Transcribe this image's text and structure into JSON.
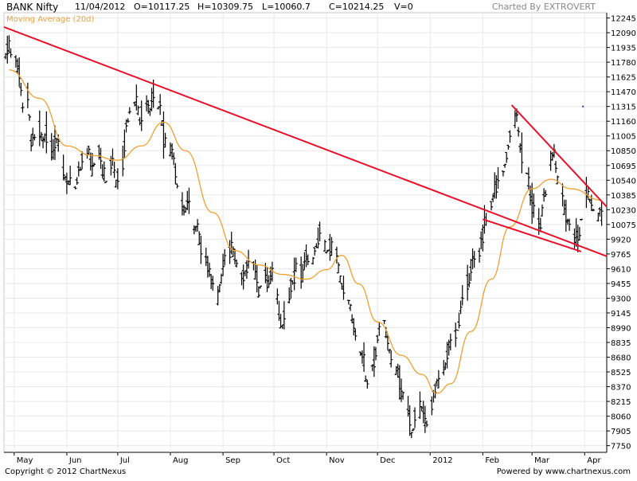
{
  "header": {
    "symbol": "BANK Nifty",
    "date": "11/04/2012",
    "open": "O=10117.25",
    "high": "H=10309.75",
    "low": "L=10060.7",
    "close": "C=10214.25",
    "volume": "V=0",
    "charted_by": "Charted By EXTROVERT"
  },
  "footer": {
    "copyright": "Copyright © 2012 ChartNexus",
    "powered": "Powered by www.chartnexus.com"
  },
  "colors": {
    "price_bar": "#000000",
    "moving_average": "#f0a030",
    "trendline": "#e8102a",
    "grid": "#e8e8e8",
    "axis": "#000000"
  },
  "chart_data": {
    "type": "ohlc",
    "title": "BANK Nifty",
    "series_name": "BANK Nifty",
    "moving_average_label": "Moving Average (20d)",
    "y_range": [
      7680,
      12300
    ],
    "y_ticks": [
      12245,
      12090,
      11935,
      11780,
      11625,
      11470,
      11315,
      11160,
      11005,
      10850,
      10695,
      10540,
      10385,
      10230,
      10075,
      9920,
      9765,
      9610,
      9455,
      9300,
      9145,
      8990,
      8835,
      8680,
      8525,
      8370,
      8215,
      8060,
      7905,
      7750
    ],
    "x_range": [
      "2011-04-25",
      "2012-04-14"
    ],
    "x_tick_labels": [
      {
        "label": "May",
        "date": "2011-05-01"
      },
      {
        "label": "Jun",
        "date": "2011-06-01"
      },
      {
        "label": "Jul",
        "date": "2011-07-01"
      },
      {
        "label": "Aug",
        "date": "2011-08-01"
      },
      {
        "label": "Sep",
        "date": "2011-09-01"
      },
      {
        "label": "Oct",
        "date": "2011-10-01"
      },
      {
        "label": "Nov",
        "date": "2011-11-01"
      },
      {
        "label": "Dec",
        "date": "2011-12-01"
      },
      {
        "label": "2012",
        "date": "2012-01-01"
      },
      {
        "label": "Feb",
        "date": "2012-02-01"
      },
      {
        "label": "Mar",
        "date": "2012-03-01"
      },
      {
        "label": "Apr",
        "date": "2012-04-01"
      }
    ],
    "price_path": [
      [
        "2011-04-26",
        11850
      ],
      [
        "2011-04-28",
        11950
      ],
      [
        "2011-05-04",
        11700
      ],
      [
        "2011-05-06",
        11300
      ],
      [
        "2011-05-09",
        11450
      ],
      [
        "2011-05-11",
        10950
      ],
      [
        "2011-05-16",
        11100
      ],
      [
        "2011-05-18",
        10900
      ],
      [
        "2011-05-20",
        11050
      ],
      [
        "2011-05-24",
        10850
      ],
      [
        "2011-05-26",
        10950
      ],
      [
        "2011-05-30",
        10700
      ],
      [
        "2011-06-01",
        10450
      ],
      [
        "2011-06-03",
        10600
      ],
      [
        "2011-06-06",
        10500
      ],
      [
        "2011-06-08",
        10650
      ],
      [
        "2011-06-10",
        10750
      ],
      [
        "2011-06-14",
        10850
      ],
      [
        "2011-06-16",
        10700
      ],
      [
        "2011-06-20",
        10850
      ],
      [
        "2011-06-22",
        10650
      ],
      [
        "2011-06-24",
        10550
      ],
      [
        "2011-06-28",
        10750
      ],
      [
        "2011-06-30",
        10500
      ],
      [
        "2011-07-04",
        10750
      ],
      [
        "2011-07-06",
        11100
      ],
      [
        "2011-07-08",
        11300
      ],
      [
        "2011-07-12",
        11350
      ],
      [
        "2011-07-14",
        11200
      ],
      [
        "2011-07-18",
        11300
      ],
      [
        "2011-07-20",
        11250
      ],
      [
        "2011-07-22",
        11400
      ],
      [
        "2011-07-26",
        11300
      ],
      [
        "2011-07-28",
        11000
      ],
      [
        "2011-08-01",
        10850
      ],
      [
        "2011-08-03",
        10750
      ],
      [
        "2011-08-05",
        10500
      ],
      [
        "2011-08-09",
        10200
      ],
      [
        "2011-08-11",
        10300
      ],
      [
        "2011-08-15",
        10000
      ],
      [
        "2011-08-17",
        10050
      ],
      [
        "2011-08-19",
        9800
      ],
      [
        "2011-08-23",
        9650
      ],
      [
        "2011-08-25",
        9500
      ],
      [
        "2011-08-29",
        9300
      ],
      [
        "2011-08-31",
        9500
      ],
      [
        "2011-09-02",
        9700
      ],
      [
        "2011-09-06",
        9850
      ],
      [
        "2011-09-08",
        9750
      ],
      [
        "2011-09-12",
        9500
      ],
      [
        "2011-09-14",
        9550
      ],
      [
        "2011-09-16",
        9700
      ],
      [
        "2011-09-20",
        9600
      ],
      [
        "2011-09-22",
        9400
      ],
      [
        "2011-09-26",
        9550
      ],
      [
        "2011-09-28",
        9500
      ],
      [
        "2011-09-30",
        9550
      ],
      [
        "2011-10-04",
        9200
      ],
      [
        "2011-10-06",
        9000
      ],
      [
        "2011-10-10",
        9350
      ],
      [
        "2011-10-12",
        9500
      ],
      [
        "2011-10-14",
        9650
      ],
      [
        "2011-10-18",
        9550
      ],
      [
        "2011-10-20",
        9750
      ],
      [
        "2011-10-24",
        9700
      ],
      [
        "2011-10-26",
        9900
      ],
      [
        "2011-10-28",
        10000
      ],
      [
        "2011-11-01",
        9800
      ],
      [
        "2011-11-03",
        9850
      ],
      [
        "2011-11-07",
        9750
      ],
      [
        "2011-11-09",
        9500
      ],
      [
        "2011-11-11",
        9400
      ],
      [
        "2011-11-15",
        9200
      ],
      [
        "2011-11-17",
        9000
      ],
      [
        "2011-11-21",
        8750
      ],
      [
        "2011-11-23",
        8600
      ],
      [
        "2011-11-25",
        8400
      ],
      [
        "2011-11-29",
        8600
      ],
      [
        "2011-12-01",
        8900
      ],
      [
        "2011-12-05",
        9050
      ],
      [
        "2011-12-07",
        8850
      ],
      [
        "2011-12-09",
        8650
      ],
      [
        "2011-12-13",
        8500
      ],
      [
        "2011-12-15",
        8300
      ],
      [
        "2011-12-19",
        8150
      ],
      [
        "2011-12-21",
        7850
      ],
      [
        "2011-12-23",
        8050
      ],
      [
        "2011-12-27",
        8150
      ],
      [
        "2011-12-29",
        7950
      ],
      [
        "2012-01-02",
        8200
      ],
      [
        "2012-01-04",
        8350
      ],
      [
        "2012-01-06",
        8450
      ],
      [
        "2012-01-10",
        8600
      ],
      [
        "2012-01-12",
        8750
      ],
      [
        "2012-01-16",
        8900
      ],
      [
        "2012-01-18",
        9100
      ],
      [
        "2012-01-20",
        9300
      ],
      [
        "2012-01-24",
        9500
      ],
      [
        "2012-01-26",
        9650
      ],
      [
        "2012-01-30",
        9750
      ],
      [
        "2012-02-01",
        9950
      ],
      [
        "2012-02-03",
        10150
      ],
      [
        "2012-02-07",
        10350
      ],
      [
        "2012-02-09",
        10500
      ],
      [
        "2012-02-13",
        10600
      ],
      [
        "2012-02-15",
        10800
      ],
      [
        "2012-02-17",
        11000
      ],
      [
        "2012-02-21",
        11200
      ],
      [
        "2012-02-23",
        10900
      ],
      [
        "2012-02-27",
        10650
      ],
      [
        "2012-02-29",
        10400
      ],
      [
        "2012-03-02",
        10200
      ],
      [
        "2012-03-06",
        10100
      ],
      [
        "2012-03-08",
        10350
      ],
      [
        "2012-03-12",
        10700
      ],
      [
        "2012-03-14",
        10850
      ],
      [
        "2012-03-16",
        10550
      ],
      [
        "2012-03-20",
        10250
      ],
      [
        "2012-03-22",
        10100
      ],
      [
        "2012-03-26",
        9950
      ],
      [
        "2012-03-28",
        9850
      ],
      [
        "2012-03-30",
        10150
      ],
      [
        "2012-04-03",
        10400
      ],
      [
        "2012-04-05",
        10300
      ],
      [
        "2012-04-09",
        10150
      ],
      [
        "2012-04-11",
        10214.25
      ]
    ],
    "moving_average_path": [
      [
        "2011-04-28",
        11700
      ],
      [
        "2011-05-16",
        11400
      ],
      [
        "2011-06-01",
        10900
      ],
      [
        "2011-06-16",
        10800
      ],
      [
        "2011-07-01",
        10750
      ],
      [
        "2011-07-15",
        10900
      ],
      [
        "2011-07-28",
        11150
      ],
      [
        "2011-08-10",
        10850
      ],
      [
        "2011-08-26",
        10200
      ],
      [
        "2011-09-08",
        9800
      ],
      [
        "2011-09-22",
        9650
      ],
      [
        "2011-10-06",
        9550
      ],
      [
        "2011-10-20",
        9500
      ],
      [
        "2011-11-01",
        9600
      ],
      [
        "2011-11-10",
        9750
      ],
      [
        "2011-11-20",
        9450
      ],
      [
        "2011-12-01",
        9050
      ],
      [
        "2011-12-15",
        8700
      ],
      [
        "2011-12-27",
        8500
      ],
      [
        "2012-01-05",
        8300
      ],
      [
        "2012-01-13",
        8400
      ],
      [
        "2012-01-25",
        8950
      ],
      [
        "2012-02-06",
        9500
      ],
      [
        "2012-02-17",
        10050
      ],
      [
        "2012-03-01",
        10450
      ],
      [
        "2012-03-12",
        10550
      ],
      [
        "2012-03-24",
        10450
      ],
      [
        "2012-04-11",
        10330
      ]
    ],
    "trendlines": [
      {
        "from": [
          "2011-04-25",
          12150
        ],
        "to": [
          "2012-04-14",
          9740
        ]
      },
      {
        "from": [
          "2012-02-18",
          11330
        ],
        "to": [
          "2012-04-14",
          10260
        ]
      },
      {
        "from": [
          "2012-02-01",
          10130
        ],
        "to": [
          "2012-03-30",
          9790
        ]
      }
    ],
    "marker": {
      "date": "2012-03-31",
      "value": 11315
    },
    "grid": true
  }
}
